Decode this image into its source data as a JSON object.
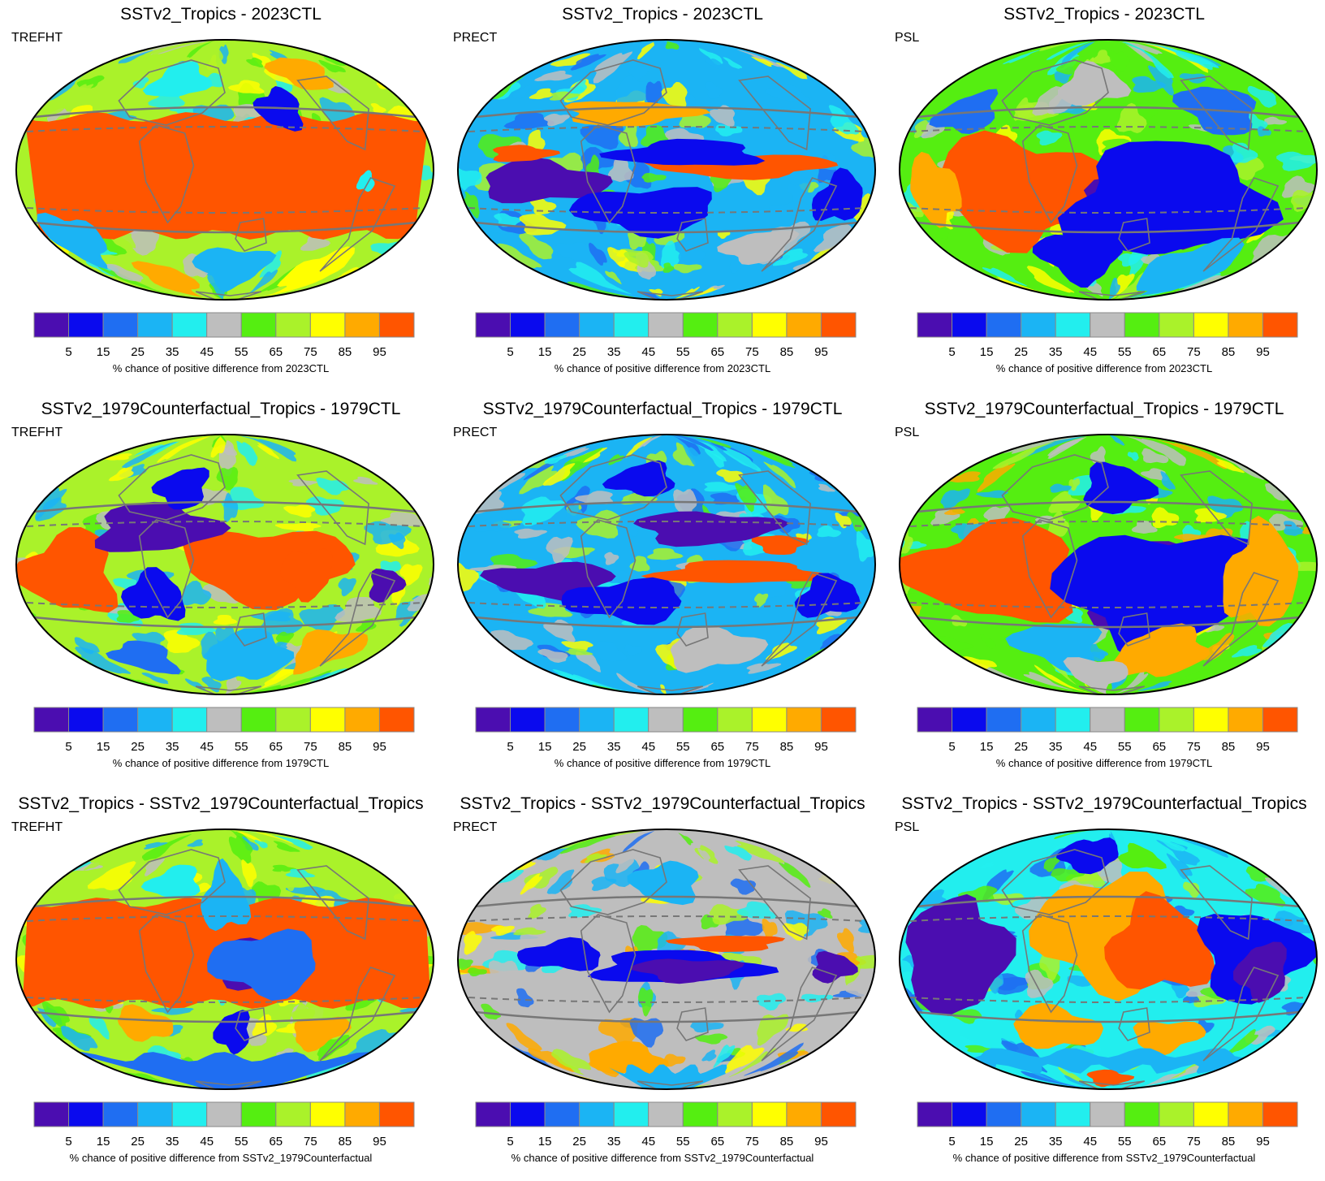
{
  "colorbar": {
    "colors": [
      "#4B0DB0",
      "#0A0AEE",
      "#1F6EF2",
      "#1BB4F4",
      "#22EEEE",
      "#BEBEBE",
      "#55EE11",
      "#AAF22A",
      "#FFFF00",
      "#FFAA00",
      "#FF5500"
    ],
    "ticks": [
      "5",
      "15",
      "25",
      "35",
      "45",
      "55",
      "65",
      "75",
      "85",
      "95"
    ],
    "border": "#888888"
  },
  "map_style": {
    "outline": "#000000",
    "coast": "#777777",
    "tropics_line": "#777777"
  },
  "rows": [
    {
      "title": "SSTv2_Tropics - 2023CTL",
      "colorbar_label": "% chance of positive difference from 2023CTL",
      "panels": [
        {
          "var": "TREFHT",
          "pattern": "trefht_2023"
        },
        {
          "var": "PRECT",
          "pattern": "prect_2023"
        },
        {
          "var": "PSL",
          "pattern": "psl_2023"
        }
      ]
    },
    {
      "title": "SSTv2_1979Counterfactual_Tropics - 1979CTL",
      "colorbar_label": "% chance of positive difference from 1979CTL",
      "panels": [
        {
          "var": "TREFHT",
          "pattern": "trefht_1979"
        },
        {
          "var": "PRECT",
          "pattern": "prect_1979"
        },
        {
          "var": "PSL",
          "pattern": "psl_1979"
        }
      ]
    },
    {
      "title": "SSTv2_Tropics - SSTv2_1979Counterfactual_Tropics",
      "colorbar_label": "% chance of positive difference from SSTv2_1979Counterfactual",
      "panels": [
        {
          "var": "TREFHT",
          "pattern": "trefht_diff"
        },
        {
          "var": "PRECT",
          "pattern": "prect_diff"
        },
        {
          "var": "PSL",
          "pattern": "psl_diff"
        }
      ]
    }
  ]
}
